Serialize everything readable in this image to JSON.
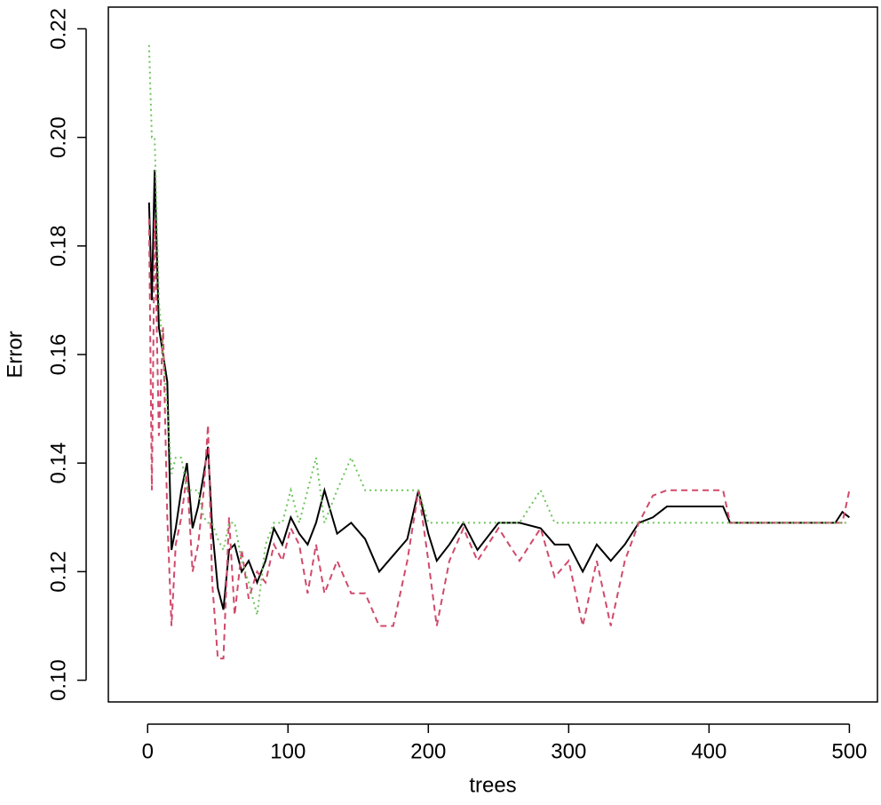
{
  "chart_data": {
    "type": "line",
    "x_label": "trees",
    "y_label": "Error",
    "x": [
      1,
      3,
      5,
      8,
      11,
      14,
      17,
      20,
      24,
      28,
      32,
      36,
      40,
      43,
      46,
      50,
      54,
      58,
      62,
      67,
      72,
      78,
      84,
      90,
      96,
      102,
      108,
      114,
      120,
      126,
      135,
      145,
      155,
      165,
      175,
      185,
      193,
      200,
      206,
      215,
      225,
      235,
      250,
      265,
      280,
      290,
      300,
      310,
      320,
      330,
      340,
      350,
      360,
      370,
      390,
      410,
      415,
      450,
      490,
      495,
      500
    ],
    "series": [
      {
        "color": "#000000",
        "dash": "solid",
        "values": [
          0.188,
          0.17,
          0.194,
          0.165,
          0.16,
          0.155,
          0.124,
          0.128,
          0.135,
          0.14,
          0.128,
          0.132,
          0.138,
          0.143,
          0.128,
          0.117,
          0.113,
          0.124,
          0.125,
          0.12,
          0.122,
          0.118,
          0.122,
          0.128,
          0.125,
          0.13,
          0.127,
          0.125,
          0.129,
          0.135,
          0.127,
          0.129,
          0.126,
          0.12,
          0.123,
          0.126,
          0.135,
          0.127,
          0.122,
          0.125,
          0.129,
          0.124,
          0.129,
          0.129,
          0.128,
          0.125,
          0.125,
          0.12,
          0.125,
          0.122,
          0.125,
          0.129,
          0.13,
          0.132,
          0.132,
          0.132,
          0.129,
          0.129,
          0.129,
          0.131,
          0.13
        ]
      },
      {
        "color": "#d1496a",
        "dash": "dashed",
        "values": [
          0.185,
          0.135,
          0.185,
          0.145,
          0.165,
          0.13,
          0.11,
          0.125,
          0.13,
          0.138,
          0.12,
          0.125,
          0.135,
          0.147,
          0.118,
          0.104,
          0.104,
          0.13,
          0.112,
          0.124,
          0.115,
          0.12,
          0.118,
          0.125,
          0.122,
          0.128,
          0.125,
          0.116,
          0.125,
          0.116,
          0.122,
          0.116,
          0.116,
          0.11,
          0.11,
          0.122,
          0.135,
          0.122,
          0.11,
          0.122,
          0.128,
          0.122,
          0.128,
          0.122,
          0.128,
          0.119,
          0.122,
          0.11,
          0.122,
          0.11,
          0.122,
          0.129,
          0.134,
          0.135,
          0.135,
          0.135,
          0.129,
          0.129,
          0.129,
          0.129,
          0.135
        ]
      },
      {
        "color": "#6cc45a",
        "dash": "dotted",
        "values": [
          0.217,
          0.2,
          0.2,
          0.17,
          0.16,
          0.15,
          0.138,
          0.141,
          0.141,
          0.135,
          0.135,
          0.135,
          0.13,
          0.129,
          0.129,
          0.126,
          0.124,
          0.129,
          0.129,
          0.122,
          0.118,
          0.112,
          0.125,
          0.129,
          0.129,
          0.135,
          0.129,
          0.135,
          0.141,
          0.129,
          0.135,
          0.141,
          0.135,
          0.135,
          0.135,
          0.135,
          0.135,
          0.129,
          0.129,
          0.129,
          0.129,
          0.129,
          0.129,
          0.129,
          0.135,
          0.129,
          0.129,
          0.129,
          0.129,
          0.129,
          0.129,
          0.129,
          0.129,
          0.129,
          0.129,
          0.129,
          0.129,
          0.129,
          0.129,
          0.129,
          0.129
        ]
      }
    ],
    "xlim": [
      -28,
      520
    ],
    "ylim": [
      0.096,
      0.224
    ],
    "xticks": [
      0,
      100,
      200,
      300,
      400,
      500
    ],
    "yticks": [
      {
        "value": 0.1,
        "label": "0.10"
      },
      0.12,
      0.14,
      0.16,
      0.18,
      {
        "value": 0.2,
        "label": "0.20"
      },
      0.22
    ],
    "grid": false
  }
}
